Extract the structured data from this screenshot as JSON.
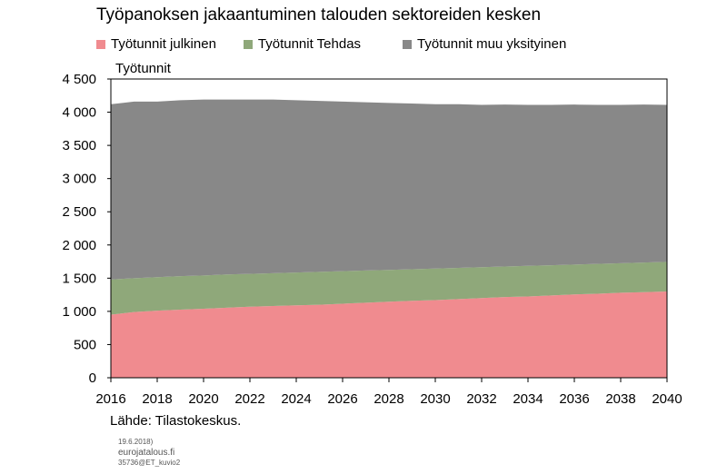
{
  "chart_data": {
    "type": "area",
    "stacked": true,
    "title": "Työpanoksen jakaantuminen talouden sektoreiden kesken",
    "ylabel": "Työtunnit",
    "xlabel": "",
    "xlim": [
      2016,
      2040
    ],
    "ylim": [
      0,
      4500
    ],
    "x_ticks": [
      "2016",
      "2018",
      "2020",
      "2022",
      "2024",
      "2026",
      "2028",
      "2030",
      "2032",
      "2034",
      "2036",
      "2038",
      "2040"
    ],
    "y_ticks": [
      0,
      500,
      1000,
      1500,
      2000,
      2500,
      3000,
      3500,
      4000,
      4500
    ],
    "y_tick_labels": [
      "0",
      "500",
      "1 000",
      "1 500",
      "2 000",
      "2 500",
      "3 000",
      "3 500",
      "4 000",
      "4 500"
    ],
    "legend_position": "top",
    "grid": false,
    "x": [
      2016,
      2017,
      2018,
      2019,
      2020,
      2021,
      2022,
      2023,
      2024,
      2025,
      2026,
      2027,
      2028,
      2029,
      2030,
      2031,
      2032,
      2033,
      2034,
      2035,
      2036,
      2037,
      2038,
      2039,
      2040
    ],
    "series": [
      {
        "name": "Työtunnit julkinen",
        "color": "#f08b8f",
        "values": [
          950,
          990,
          1010,
          1025,
          1040,
          1055,
          1070,
          1080,
          1090,
          1100,
          1115,
          1130,
          1145,
          1160,
          1170,
          1185,
          1200,
          1215,
          1225,
          1240,
          1255,
          1265,
          1280,
          1290,
          1300
        ]
      },
      {
        "name": "Työtunnit Tehdas",
        "color": "#8fa87a",
        "values": [
          530,
          510,
          505,
          505,
          500,
          500,
          495,
          495,
          495,
          495,
          490,
          485,
          480,
          475,
          475,
          470,
          465,
          460,
          460,
          455,
          450,
          450,
          445,
          445,
          445
        ]
      },
      {
        "name": "Työtunnit muu yksityinen",
        "color": "#888888",
        "values": [
          2640,
          2660,
          2645,
          2650,
          2650,
          2635,
          2625,
          2615,
          2595,
          2575,
          2555,
          2535,
          2515,
          2495,
          2475,
          2465,
          2445,
          2440,
          2425,
          2415,
          2410,
          2395,
          2385,
          2380,
          2365
        ]
      }
    ]
  },
  "source": "Lähde: Tilastokeskus.",
  "footer": {
    "date": "19.6.2018)",
    "site": "eurojatalous.fi",
    "code": "35736@ET_kuvio2"
  }
}
